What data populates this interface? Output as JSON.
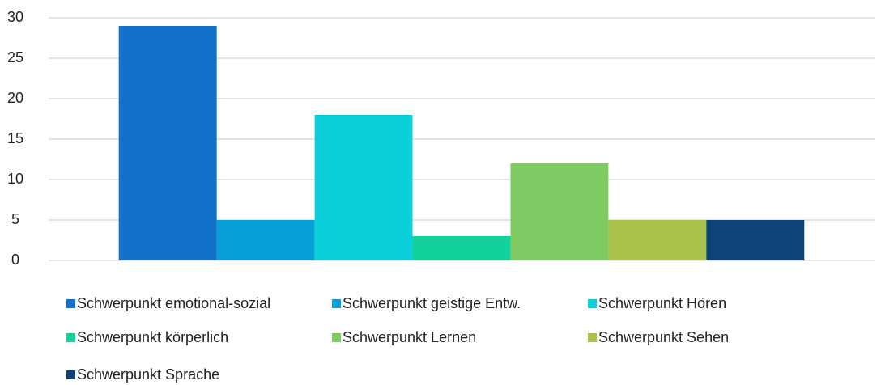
{
  "chart_data": {
    "type": "bar",
    "categories": [
      null
    ],
    "series": [
      {
        "name": "Schwerpunkt emotional-sozial",
        "color": "#1170c8",
        "values": [
          29
        ]
      },
      {
        "name": "Schwerpunkt geistige Entw.",
        "color": "#079ed8",
        "values": [
          5
        ]
      },
      {
        "name": "Schwerpunkt Hören",
        "color": "#0bd0d9",
        "values": [
          18
        ]
      },
      {
        "name": "Schwerpunkt körperlich",
        "color": "#13d19a",
        "values": [
          3
        ]
      },
      {
        "name": "Schwerpunkt Lernen",
        "color": "#7ecb64",
        "values": [
          12
        ]
      },
      {
        "name": "Schwerpunkt Sehen",
        "color": "#a9c24a",
        "values": [
          5
        ]
      },
      {
        "name": "Schwerpunkt Sprache",
        "color": "#0c4477",
        "values": [
          5
        ]
      }
    ],
    "ylim": [
      0,
      30
    ],
    "yticks": [
      0,
      5,
      10,
      15,
      20,
      25,
      30
    ],
    "grid": true,
    "legend": "bottom"
  }
}
